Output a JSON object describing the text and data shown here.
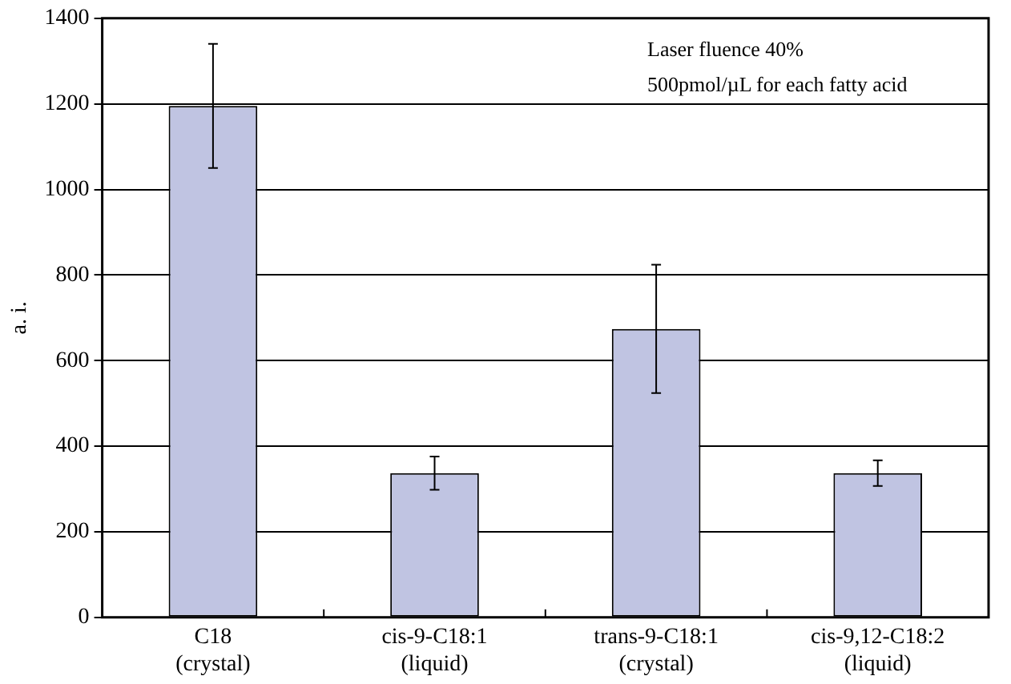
{
  "chart_data": {
    "type": "bar",
    "ylabel": "a. i.",
    "categories": [
      "C18\n(crystal)",
      "cis-9-C18:1\n(liquid)",
      "trans-9-C18:1\n(crystal)",
      "cis-9,12-C18:2\n(liquid)"
    ],
    "values": [
      1195,
      337,
      674,
      337
    ],
    "errors": [
      145,
      39,
      150,
      30
    ],
    "color": "#c0c4e2",
    "ylim": [
      0,
      1400
    ],
    "yticks": [
      0,
      200,
      400,
      600,
      800,
      1000,
      1200,
      1400
    ],
    "grid": "y",
    "legend": false,
    "annotations": [
      "Laser fluence 40%",
      "500pmol/µL for each fatty acid"
    ]
  }
}
